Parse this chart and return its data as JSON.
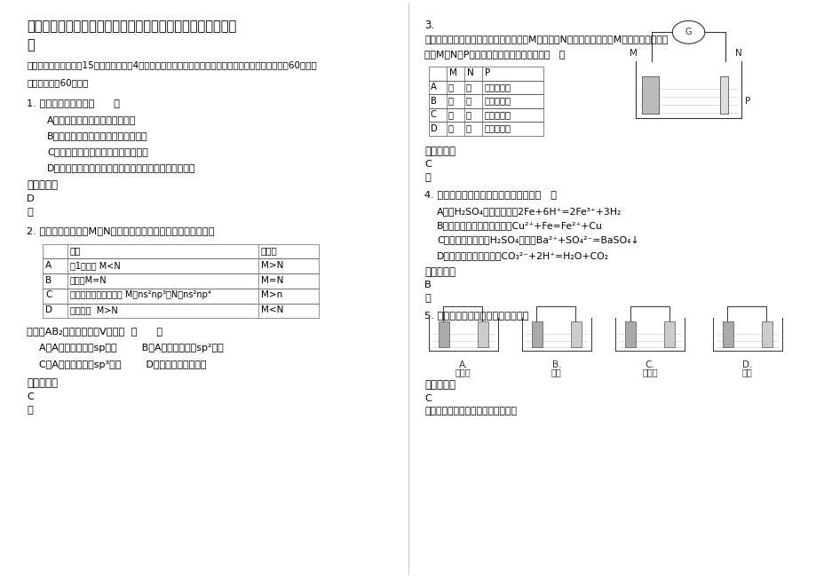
{
  "bg_color": "#ffffff",
  "title": "辽宁省丹东市辽宁财专附属职业中学高二化学期末试题含解析",
  "section1_header": "一、单选题（本大题共15个小题，每小题4分。在每小题给出的四个选项中，只有一项符合题目要求，共60分。）",
  "q1_text": "1. 下列说法正确的是（      ）",
  "q1_A": "A．石油是混合物，汽油是纯净物",
  "q1_B": "B．沸点：汽油＞煤油＞柴油＞润滑油",
  "q1_C": "C．分馏汽油和裂化汽油成分完全相同",
  "q1_D": "D．石油的分馏是物理过程，而裂化和裂解属于化学过程",
  "answer_label": "参考答案：",
  "q1_answer": "D",
  "q1_note": "略",
  "q2_text": "2. 下列有关主族元素M、N非金属性强弱比较的说明中，正确的是",
  "q2_table_rows": [
    [
      "A",
      "第1电离能 M<N",
      "M>N"
    ],
    [
      "B",
      "电负性M=N",
      "M=N"
    ],
    [
      "C",
      "基态原子价层电子排布 M：ns²np³，N：ns²np⁴",
      "M>n"
    ],
    [
      "D",
      "原子半径  M>N",
      "M<N"
    ]
  ],
  "q2_sub_text": "已知某AB₂分子的构型为V型，则  （      ）",
  "q2_sub_A": "A．A原子不可能是sp杂化        B．A原子不可能是sp²杂化",
  "q2_sub_C": "C．A原子不可能是sp³杂化        D．不可能是极性分子",
  "q2_answer": "C",
  "q2_note": "略",
  "q3_num": "3.",
  "q3_text": "下图所示装置中观察到电流计指针偏转，M棒变粗，N棒变细，指针指向M，由此判断下表中所列M、N、P物质，其中可以成立的组合是（   ）",
  "q3_table_rows": [
    [
      "A",
      "锌",
      "铜",
      "稀硫酸溶液"
    ],
    [
      "B",
      "铜",
      "铁",
      "稀盐酸溶液"
    ],
    [
      "C",
      "银",
      "锌",
      "硝酸银溶液"
    ],
    [
      "D",
      "锌",
      "铁",
      "硝酸铁溶液"
    ]
  ],
  "q3_answer": "C",
  "q3_note": "略",
  "q4_text": "4. 下列反应的离子方程式书写正确的是（   ）",
  "q4_A": "A．稀H₂SO₄与铁粉反应：2Fe+6H⁺=2Fe³⁺+3H₂",
  "q4_B": "B．氯化铜溶液与铁粉反应：Cu²⁺+Fe=Fe²⁺+Cu",
  "q4_C": "C．氯化钡溶液与稀H₂SO₄反应：Ba²⁺+SO₄²⁻=BaSO₄↓",
  "q4_D": "D．碳酸钙与盐酸反应：CO₃²⁻+2H⁺=H₂O+CO₂",
  "q4_answer": "B",
  "q4_note": "略",
  "q5_text": "5. 下列装置中能构成原电池的是（）",
  "q5_solutions": [
    "稀硫酸",
    "稀酸",
    "稀硫酸",
    "酒精"
  ],
  "q5_labels": [
    "A.",
    "B.",
    "C.",
    "D."
  ],
  "q5_answer": "C",
  "q5_note": "考点：原电池和电解池的工作原理。"
}
